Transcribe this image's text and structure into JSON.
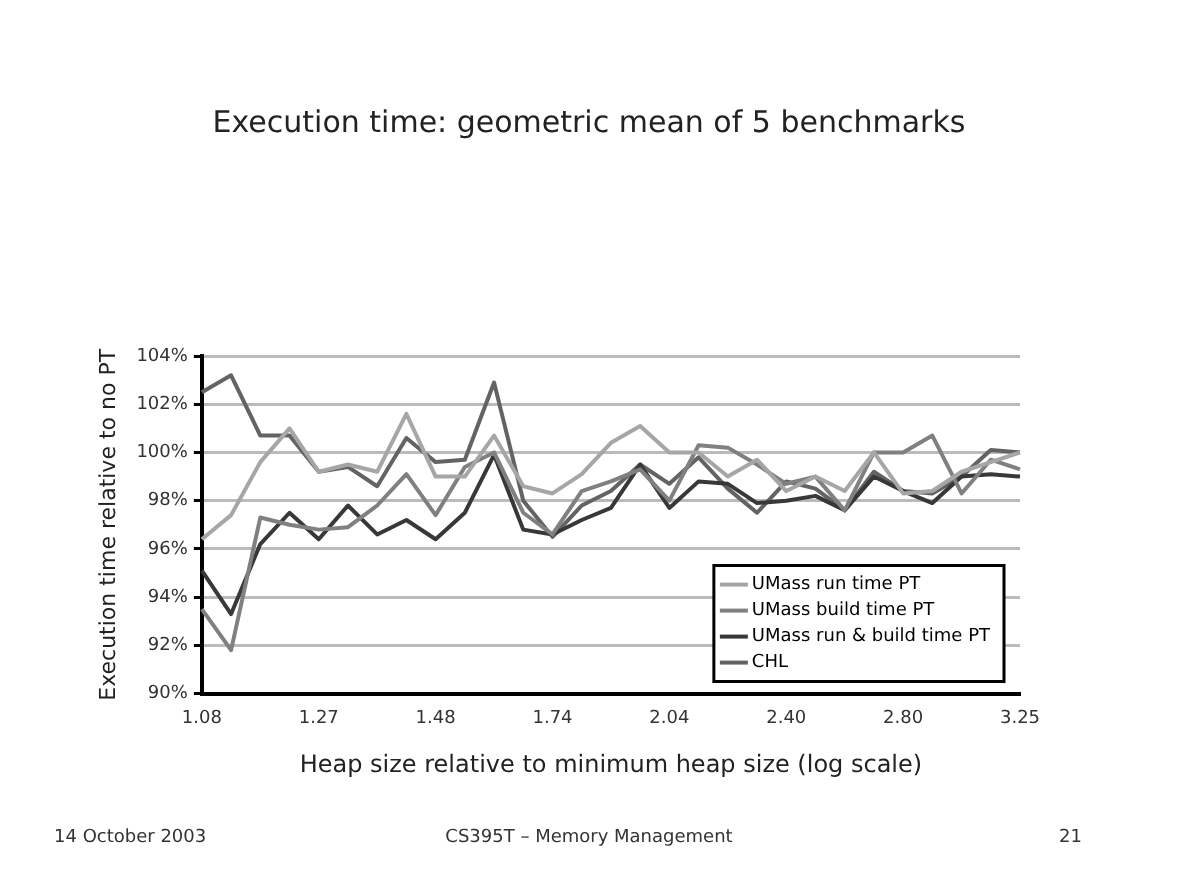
{
  "chart_data": {
    "type": "line",
    "title": "Execution time: geometric mean of 5 benchmarks",
    "xlabel": "Heap size relative to minimum heap size (log scale)",
    "ylabel": "Execution time relative to no PT",
    "categories": [
      "1.08",
      null,
      null,
      null,
      "1.27",
      null,
      null,
      null,
      "1.48",
      null,
      null,
      null,
      "1.74",
      null,
      null,
      null,
      "2.04",
      null,
      null,
      null,
      "2.40",
      null,
      null,
      null,
      "2.80",
      null,
      null,
      null,
      "3.25"
    ],
    "series": [
      {
        "name": "UMass run time PT",
        "color": "#a6a6a6",
        "values": [
          96.4,
          97.4,
          99.6,
          101.0,
          99.2,
          99.5,
          99.2,
          101.6,
          99.0,
          99.0,
          100.7,
          98.6,
          98.3,
          99.1,
          100.4,
          101.1,
          100.0,
          100.0,
          99.0,
          99.7,
          98.4,
          99.0,
          98.4,
          100.0,
          98.3,
          98.4,
          99.2,
          99.6,
          100.0
        ]
      },
      {
        "name": "UMass build time PT",
        "color": "#808080",
        "values": [
          93.5,
          91.8,
          97.3,
          97.0,
          96.8,
          96.9,
          97.8,
          99.1,
          97.4,
          99.4,
          100.0,
          97.5,
          96.6,
          98.4,
          98.8,
          99.3,
          98.0,
          100.3,
          100.2,
          99.5,
          98.7,
          99.0,
          97.6,
          100.0,
          100.0,
          100.7,
          98.3,
          99.7,
          99.3
        ]
      },
      {
        "name": "UMass run & build time PT",
        "color": "#383838",
        "values": [
          95.1,
          93.3,
          96.2,
          97.5,
          96.4,
          97.8,
          96.6,
          97.2,
          96.4,
          97.5,
          99.9,
          96.8,
          96.6,
          97.2,
          97.7,
          99.5,
          97.7,
          98.8,
          98.7,
          97.9,
          98.0,
          98.2,
          97.6,
          99.0,
          98.4,
          97.9,
          99.0,
          99.1,
          99.0
        ]
      },
      {
        "name": "CHL",
        "color": "#636363",
        "values": [
          102.5,
          103.2,
          100.7,
          100.7,
          99.2,
          99.4,
          98.6,
          100.6,
          99.6,
          99.7,
          102.9,
          98.0,
          96.5,
          97.8,
          98.4,
          99.5,
          98.7,
          99.8,
          98.5,
          97.5,
          98.8,
          98.5,
          97.6,
          99.2,
          98.4,
          98.3,
          99.0,
          100.1,
          100.0
        ]
      }
    ],
    "ylim": [
      90,
      104
    ],
    "yticks": [
      {
        "value": 90,
        "label": "90%"
      },
      {
        "value": 92,
        "label": "92%"
      },
      {
        "value": 94,
        "label": "94%"
      },
      {
        "value": 96,
        "label": "96%"
      },
      {
        "value": 98,
        "label": "98%"
      },
      {
        "value": 100,
        "label": "100%"
      },
      {
        "value": 102,
        "label": "102%"
      },
      {
        "value": 104,
        "label": "104%"
      }
    ],
    "grid": "y",
    "legend": "bottom right",
    "marker": "none",
    "line_style": "solid",
    "annotations": [
      "14 October 2003",
      "CS395T – Memory Management",
      "21"
    ]
  }
}
